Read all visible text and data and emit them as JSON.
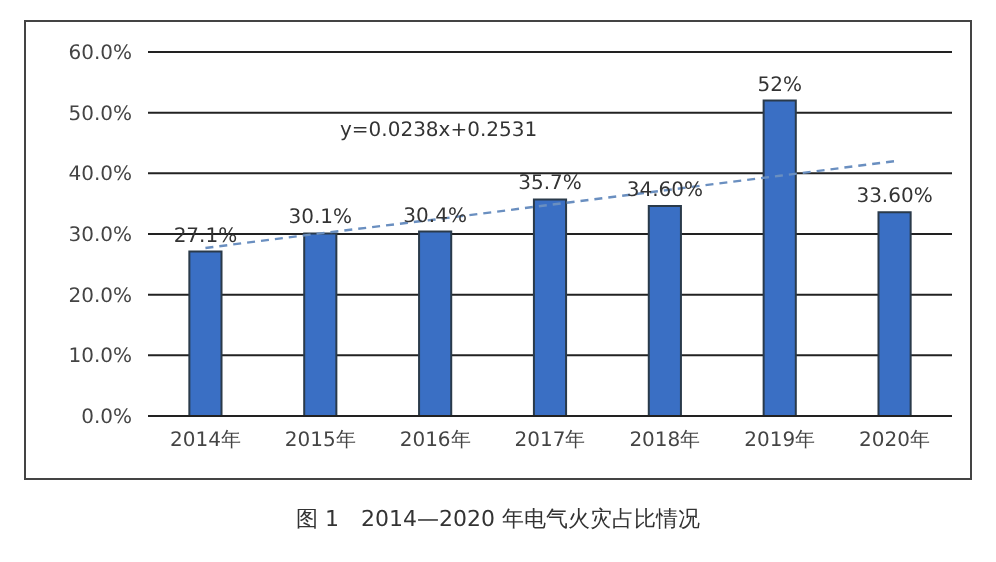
{
  "chart_data": {
    "type": "bar",
    "title": "图 1　2014—2020 年电气火灾占比情况",
    "categories": [
      "2014年",
      "2015年",
      "2016年",
      "2017年",
      "2018年",
      "2019年",
      "2020年"
    ],
    "series": [
      {
        "color": "#3a6fc4",
        "values": [
          27.1,
          30.1,
          30.4,
          35.7,
          34.6,
          52,
          33.6
        ],
        "value_labels": [
          "27.1%",
          "30.1%",
          "30.4%",
          "35.7%",
          "34.60%",
          "52%",
          "33.60%"
        ]
      },
      {
        "type": "line",
        "color": "#6a8fc0",
        "line_style": "dashed",
        "marker": "none",
        "values": [
          27.7,
          30.1,
          32.4,
          34.8,
          37.2,
          39.6,
          42.0
        ]
      }
    ],
    "annotations": [
      "y=0.0238x+0.2531"
    ],
    "ylim": [
      0,
      60
    ],
    "yticks": [
      {
        "value": 0,
        "label": "0.0%"
      },
      {
        "value": 10,
        "label": "10.0%"
      },
      {
        "value": 20,
        "label": "20.0%"
      },
      {
        "value": 30,
        "label": "30.0%"
      },
      {
        "value": 40,
        "label": "40.0%"
      },
      {
        "value": 50,
        "label": "50.0%"
      },
      {
        "value": 60,
        "label": "60.0%"
      }
    ],
    "grid": "y",
    "legend": false
  }
}
